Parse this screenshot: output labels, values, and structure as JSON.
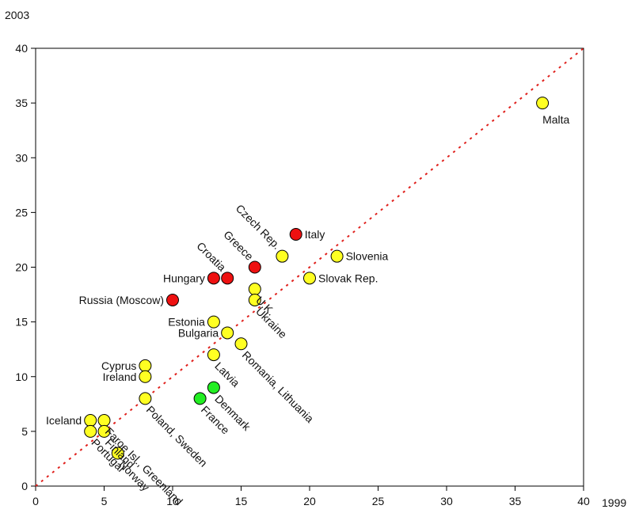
{
  "chart_data": {
    "type": "scatter",
    "title": "",
    "xlabel": "1999",
    "ylabel": "2003",
    "xlim": [
      0,
      40
    ],
    "ylim": [
      0,
      40
    ],
    "x_ticks": [
      0,
      5,
      10,
      15,
      20,
      25,
      30,
      35,
      40
    ],
    "y_ticks": [
      0,
      5,
      10,
      15,
      20,
      25,
      30,
      35,
      40
    ],
    "grid": false,
    "reference_line": {
      "from": [
        0,
        0
      ],
      "to": [
        40,
        40
      ],
      "style": "dotted",
      "color": "#e0201c"
    },
    "colors": {
      "red": "#ee1111",
      "yellow": "#ffff22",
      "green": "#22ee22",
      "outline": "#000000"
    },
    "points": [
      {
        "x": 37,
        "y": 35,
        "color": "yellow"
      },
      {
        "x": 19,
        "y": 23,
        "color": "red"
      },
      {
        "x": 18,
        "y": 21,
        "color": "yellow"
      },
      {
        "x": 16,
        "y": 20,
        "color": "red"
      },
      {
        "x": 22,
        "y": 21,
        "color": "yellow"
      },
      {
        "x": 20,
        "y": 19,
        "color": "yellow"
      },
      {
        "x": 13,
        "y": 19,
        "color": "red"
      },
      {
        "x": 14,
        "y": 19,
        "color": "red"
      },
      {
        "x": 16,
        "y": 18,
        "color": "yellow"
      },
      {
        "x": 16,
        "y": 17,
        "color": "yellow"
      },
      {
        "x": 10,
        "y": 17,
        "color": "red"
      },
      {
        "x": 13,
        "y": 15,
        "color": "yellow"
      },
      {
        "x": 14,
        "y": 14,
        "color": "yellow"
      },
      {
        "x": 15,
        "y": 13,
        "color": "yellow"
      },
      {
        "x": 13,
        "y": 12,
        "color": "yellow"
      },
      {
        "x": 8,
        "y": 11,
        "color": "yellow"
      },
      {
        "x": 8,
        "y": 10,
        "color": "yellow"
      },
      {
        "x": 8,
        "y": 8,
        "color": "yellow"
      },
      {
        "x": 13,
        "y": 9,
        "color": "green"
      },
      {
        "x": 12,
        "y": 8,
        "color": "green"
      },
      {
        "x": 4,
        "y": 6,
        "color": "yellow"
      },
      {
        "x": 5,
        "y": 6,
        "color": "yellow"
      },
      {
        "x": 4,
        "y": 5,
        "color": "yellow"
      },
      {
        "x": 5,
        "y": 5,
        "color": "yellow"
      },
      {
        "x": 6,
        "y": 3,
        "color": "yellow"
      }
    ],
    "labels": [
      {
        "text": "Malta",
        "x": 37,
        "y": 35,
        "placement": "below",
        "rotation": 0
      },
      {
        "text": "Italy",
        "x": 19,
        "y": 23,
        "placement": "right",
        "rotation": 0
      },
      {
        "text": "Slovenia",
        "x": 22,
        "y": 21,
        "placement": "right",
        "rotation": 0
      },
      {
        "text": "Slovak Rep.",
        "x": 20,
        "y": 19,
        "placement": "right",
        "rotation": 0
      },
      {
        "text": "Czech Rep.",
        "x": 18,
        "y": 21,
        "placement": "upper-left",
        "rotation": 45
      },
      {
        "text": "Greece",
        "x": 16,
        "y": 20,
        "placement": "upper-left",
        "rotation": 45
      },
      {
        "text": "Croatia",
        "x": 14,
        "y": 19,
        "placement": "upper-left",
        "rotation": 45
      },
      {
        "text": "Hungary",
        "x": 13,
        "y": 19,
        "placement": "left",
        "rotation": 0
      },
      {
        "text": "U.K.",
        "x": 16,
        "y": 18,
        "placement": "lower-right",
        "rotation": 45
      },
      {
        "text": "Ukraine",
        "x": 16,
        "y": 17,
        "placement": "lower-right",
        "rotation": 45
      },
      {
        "text": "Russia (Moscow)",
        "x": 10,
        "y": 17,
        "placement": "left",
        "rotation": 0
      },
      {
        "text": "Estonia",
        "x": 13,
        "y": 15,
        "placement": "left",
        "rotation": 0
      },
      {
        "text": "Bulgaria",
        "x": 14,
        "y": 14,
        "placement": "left",
        "rotation": 0
      },
      {
        "text": "Romania, Lithuania",
        "x": 15,
        "y": 13,
        "placement": "lower-right",
        "rotation": 45
      },
      {
        "text": "Latvia",
        "x": 13,
        "y": 12,
        "placement": "lower-right",
        "rotation": 45
      },
      {
        "text": "Cyprus",
        "x": 8,
        "y": 11,
        "placement": "left",
        "rotation": 0
      },
      {
        "text": "Ireland",
        "x": 8,
        "y": 10,
        "placement": "left",
        "rotation": 0
      },
      {
        "text": "Poland, Sweden",
        "x": 8,
        "y": 8,
        "placement": "lower-right",
        "rotation": 45
      },
      {
        "text": "Denmark",
        "x": 13,
        "y": 9,
        "placement": "lower-right",
        "rotation": 45
      },
      {
        "text": "France",
        "x": 12,
        "y": 8,
        "placement": "lower-right",
        "rotation": 45
      },
      {
        "text": "Iceland",
        "x": 4,
        "y": 6,
        "placement": "left",
        "rotation": 0
      },
      {
        "text": "Faroe Isl., Greenland",
        "x": 5,
        "y": 6,
        "placement": "lower-right",
        "rotation": 45
      },
      {
        "text": "Finland",
        "x": 5,
        "y": 5,
        "placement": "lower-right",
        "rotation": 45
      },
      {
        "text": "Norway",
        "x": 6,
        "y": 3,
        "placement": "lower-right",
        "rotation": 45
      },
      {
        "text": "Portugal",
        "x": 4,
        "y": 5,
        "placement": "lower-right",
        "rotation": 45
      }
    ]
  }
}
